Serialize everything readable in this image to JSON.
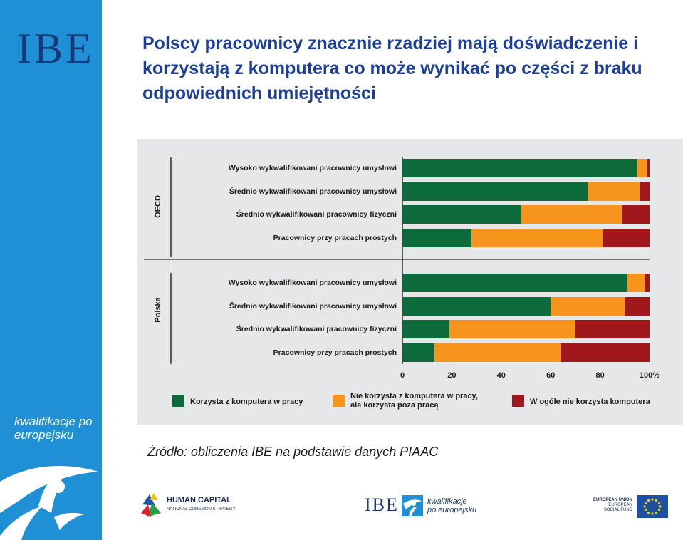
{
  "sidebar": {
    "logo": "IBE",
    "tagline": "kwalifikacje po europejsku"
  },
  "title": "Polscy pracownicy znacznie rzadziej mają doświadczenie i korzystają z komputera co może wynikać po części z braku odpowiednich umiejętności",
  "source": "Źródło: obliczenia IBE na podstawie danych PIAAC",
  "chart_data": {
    "type": "bar",
    "orientation": "horizontal",
    "stacked": true,
    "groups": [
      {
        "name": "OECD",
        "categories": [
          "Wysoko wykwalifikowani pracownicy umysłowi",
          "Średnio wykwalifikowani pracownicy umysłowi",
          "Średnio wykwalifikowani pracownicy fizyczni",
          "Pracownicy przy pracach prostych"
        ]
      },
      {
        "name": "Polska",
        "categories": [
          "Wysoko wykwalifikowani pracownicy umysłowi",
          "Średnio wykwalifikowani pracownicy umysłowi",
          "Średnio wykwalifikowani pracownicy fizyczni",
          "Pracownicy przy pracach prostych"
        ]
      }
    ],
    "series": [
      {
        "name": "Korzysta z komputera w pracy",
        "color": "#0d6b3b",
        "values": [
          95,
          75,
          48,
          28,
          91,
          60,
          19,
          13
        ]
      },
      {
        "name": "Nie korzysta z komputera w pracy, ale korzysta poza pracą",
        "color": "#f7941d",
        "values": [
          4,
          21,
          41,
          53,
          7,
          30,
          51,
          51
        ]
      },
      {
        "name": "W ogóle nie korzysta komputera",
        "color": "#a0171c",
        "values": [
          1,
          4,
          11,
          19,
          2,
          10,
          30,
          36
        ]
      }
    ],
    "xlim": [
      0,
      100
    ],
    "xticks": [
      "0",
      "20",
      "40",
      "60",
      "80",
      "100%"
    ],
    "legend_position": "bottom"
  },
  "footer": {
    "hc_name": "HUMAN CAPITAL",
    "hc_sub": "NATIONAL COHESION STRATEGY",
    "ibe": "IBE",
    "ibe_tagline": "kwalifikacje po europejsku",
    "eu_line1": "EUROPEAN UNION",
    "eu_line2": "EUROPEAN",
    "eu_line3": "SOCIAL FUND"
  }
}
